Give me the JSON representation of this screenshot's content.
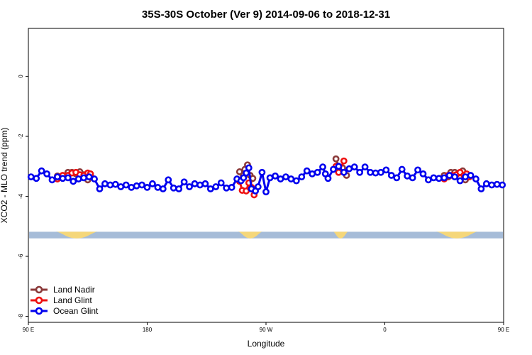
{
  "chart_data": {
    "type": "line",
    "title": "35S-30S October (Ver 9)   2014-09-06 to 2018-12-31",
    "xlabel": "Longitude",
    "ylabel": "XCO2 - MLO trend (ppm)",
    "xlim": [
      0,
      360
    ],
    "ylim": [
      -8.2,
      1.6
    ],
    "x_ticks": [
      {
        "value": 0,
        "label": "90 E"
      },
      {
        "value": 90,
        "label": "180"
      },
      {
        "value": 180,
        "label": "90 W"
      },
      {
        "value": 270,
        "label": "0"
      },
      {
        "value": 360,
        "label": "90 E"
      }
    ],
    "y_ticks": [
      {
        "value": 0,
        "label": "0"
      },
      {
        "value": -2,
        "label": "-2"
      },
      {
        "value": -4,
        "label": "-4"
      },
      {
        "value": -6,
        "label": "-6"
      },
      {
        "value": -8,
        "label": "-8"
      }
    ],
    "grid": false,
    "legend_position": "bottom-left",
    "land_strip": {
      "y_top": -5.18,
      "y_bottom": -5.4,
      "ocean_color": "#a6bcd8",
      "land_color": "#f5d77a",
      "land_segments": [
        [
          21,
          52
        ],
        [
          159,
          177
        ],
        [
          231,
          242
        ],
        [
          309,
          340
        ]
      ]
    },
    "series": [
      {
        "name": "Land Nadir",
        "color": "#8b3a3a",
        "segments": [
          [
            [
              22,
              -3.32
            ],
            [
              26,
              -3.36
            ],
            [
              30,
              -3.2
            ],
            [
              33,
              -3.2
            ],
            [
              36,
              -3.25
            ],
            [
              39,
              -3.18
            ],
            [
              42,
              -3.28
            ],
            [
              45,
              -3.45
            ],
            [
              47,
              -3.3
            ]
          ],
          [
            [
              160,
              -3.18
            ],
            [
              162,
              -3.42
            ],
            [
              164,
              -3.1
            ],
            [
              166,
              -2.95
            ],
            [
              168,
              -3.3
            ],
            [
              170,
              -3.4
            ]
          ],
          [
            [
              233,
              -2.75
            ],
            [
              235,
              -3.0
            ],
            [
              238,
              -3.05
            ],
            [
              241,
              -3.3
            ]
          ],
          [
            [
              315,
              -3.3
            ],
            [
              318,
              -3.35
            ],
            [
              320,
              -3.2
            ],
            [
              323,
              -3.2
            ],
            [
              326,
              -3.22
            ],
            [
              329,
              -3.15
            ],
            [
              331,
              -3.45
            ],
            [
              333,
              -3.3
            ]
          ]
        ]
      },
      {
        "name": "Land Glint",
        "color": "#ee1111",
        "segments": [
          [
            [
              22,
              -3.42
            ],
            [
              26,
              -3.3
            ],
            [
              30,
              -3.3
            ],
            [
              33,
              -3.22
            ],
            [
              36,
              -3.2
            ],
            [
              39,
              -3.28
            ],
            [
              42,
              -3.3
            ],
            [
              45,
              -3.22
            ],
            [
              47,
              -3.25
            ]
          ],
          [
            [
              160,
              -3.5
            ],
            [
              162,
              -3.8
            ],
            [
              165,
              -3.82
            ],
            [
              167,
              -3.55
            ],
            [
              169,
              -3.7
            ],
            [
              171,
              -3.95
            ]
          ],
          [
            [
              233,
              -3.0
            ],
            [
              235,
              -3.2
            ],
            [
              239,
              -2.82
            ]
          ],
          [
            [
              315,
              -3.42
            ],
            [
              318,
              -3.3
            ],
            [
              321,
              -3.3
            ],
            [
              324,
              -3.28
            ],
            [
              327,
              -3.2
            ],
            [
              330,
              -3.3
            ],
            [
              332,
              -3.25
            ],
            [
              334,
              -3.35
            ]
          ]
        ]
      },
      {
        "name": "Ocean Glint",
        "color": "#0000ee",
        "segments": [
          [
            [
              2,
              -3.35
            ],
            [
              6,
              -3.4
            ],
            [
              10,
              -3.15
            ],
            [
              14,
              -3.25
            ],
            [
              18,
              -3.45
            ],
            [
              22,
              -3.35
            ],
            [
              26,
              -3.4
            ],
            [
              30,
              -3.38
            ],
            [
              34,
              -3.5
            ],
            [
              38,
              -3.42
            ],
            [
              42,
              -3.38
            ],
            [
              46,
              -3.35
            ],
            [
              50,
              -3.42
            ],
            [
              54,
              -3.75
            ],
            [
              58,
              -3.58
            ],
            [
              62,
              -3.62
            ],
            [
              66,
              -3.6
            ],
            [
              70,
              -3.68
            ],
            [
              74,
              -3.62
            ],
            [
              78,
              -3.7
            ],
            [
              82,
              -3.65
            ],
            [
              86,
              -3.62
            ],
            [
              90,
              -3.7
            ],
            [
              94,
              -3.58
            ],
            [
              98,
              -3.7
            ],
            [
              102,
              -3.75
            ],
            [
              106,
              -3.45
            ],
            [
              110,
              -3.72
            ],
            [
              114,
              -3.75
            ],
            [
              118,
              -3.52
            ],
            [
              122,
              -3.68
            ],
            [
              126,
              -3.58
            ],
            [
              130,
              -3.62
            ],
            [
              134,
              -3.58
            ],
            [
              138,
              -3.75
            ],
            [
              142,
              -3.68
            ],
            [
              146,
              -3.55
            ],
            [
              150,
              -3.72
            ],
            [
              154,
              -3.7
            ],
            [
              158,
              -3.42
            ],
            [
              161,
              -3.48
            ],
            [
              163,
              -3.38
            ],
            [
              165,
              -3.22
            ],
            [
              167,
              -3.05
            ],
            [
              169,
              -3.75
            ],
            [
              172,
              -3.82
            ],
            [
              174,
              -3.68
            ],
            [
              177,
              -3.2
            ],
            [
              180,
              -3.85
            ],
            [
              183,
              -3.38
            ],
            [
              187,
              -3.32
            ],
            [
              191,
              -3.42
            ],
            [
              195,
              -3.35
            ],
            [
              199,
              -3.42
            ],
            [
              203,
              -3.48
            ],
            [
              207,
              -3.35
            ],
            [
              211,
              -3.15
            ],
            [
              215,
              -3.25
            ],
            [
              219,
              -3.2
            ],
            [
              223,
              -3.02
            ],
            [
              225,
              -3.25
            ],
            [
              227,
              -3.4
            ],
            [
              231,
              -3.1
            ],
            [
              235,
              -3.0
            ],
            [
              239,
              -3.2
            ],
            [
              243,
              -3.08
            ],
            [
              247,
              -3.02
            ],
            [
              251,
              -3.2
            ],
            [
              255,
              -3.02
            ],
            [
              259,
              -3.2
            ],
            [
              263,
              -3.22
            ],
            [
              267,
              -3.2
            ],
            [
              271,
              -3.12
            ],
            [
              275,
              -3.3
            ],
            [
              279,
              -3.38
            ],
            [
              283,
              -3.1
            ],
            [
              287,
              -3.32
            ],
            [
              291,
              -3.38
            ],
            [
              295,
              -3.12
            ],
            [
              299,
              -3.25
            ],
            [
              303,
              -3.45
            ],
            [
              307,
              -3.38
            ],
            [
              311,
              -3.4
            ],
            [
              315,
              -3.38
            ],
            [
              319,
              -3.3
            ],
            [
              323,
              -3.35
            ],
            [
              327,
              -3.48
            ],
            [
              331,
              -3.35
            ],
            [
              335,
              -3.3
            ],
            [
              339,
              -3.42
            ],
            [
              343,
              -3.75
            ],
            [
              347,
              -3.58
            ],
            [
              351,
              -3.62
            ],
            [
              355,
              -3.6
            ],
            [
              359,
              -3.62
            ]
          ]
        ]
      }
    ]
  }
}
